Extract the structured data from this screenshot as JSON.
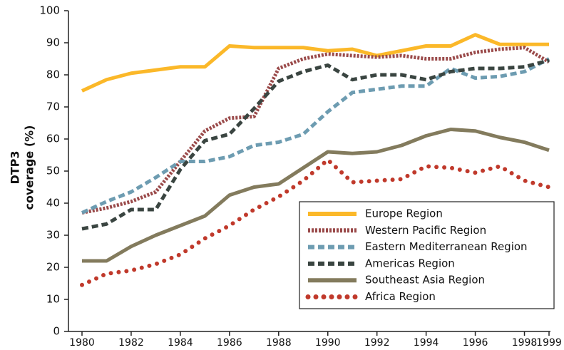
{
  "chart_data": {
    "type": "line",
    "y_label": [
      "DTP3",
      "coverage (%)"
    ],
    "x": [
      1980,
      1981,
      1982,
      1983,
      1984,
      1985,
      1986,
      1987,
      1988,
      1989,
      1990,
      1991,
      1992,
      1993,
      1994,
      1995,
      1996,
      1997,
      1998,
      1999
    ],
    "xlim": [
      1980,
      1999
    ],
    "xticks": [
      1980,
      1982,
      1984,
      1986,
      1988,
      1990,
      1992,
      1994,
      1996,
      1998,
      1999
    ],
    "ylim": [
      0,
      100
    ],
    "yticks": [
      0,
      10,
      20,
      30,
      40,
      50,
      60,
      70,
      80,
      90,
      100
    ],
    "legend": "lower right",
    "series": [
      {
        "name": "Europe Region",
        "color": "#fbb829",
        "style": "solid",
        "values": [
          75,
          78.5,
          80.5,
          81.5,
          82.5,
          82.5,
          89,
          88.5,
          88.5,
          88.5,
          87.5,
          88,
          86,
          87.5,
          89,
          89,
          92.5,
          89.5,
          89.5,
          89.5
        ]
      },
      {
        "name": "Western Pacific Region",
        "color": "#9a4a4a",
        "style": "dotted",
        "values": [
          37,
          38.5,
          40.5,
          43.5,
          53,
          62.5,
          66.5,
          67,
          82,
          85,
          86.5,
          86,
          85.5,
          86,
          85,
          85,
          87,
          88,
          88.5,
          84
        ]
      },
      {
        "name": "Eastern Mediterranean Region",
        "color": "#6d9cb1",
        "style": "dashed",
        "values": [
          37,
          40.5,
          43.5,
          48,
          53,
          53,
          54.5,
          58,
          59,
          61.5,
          68.5,
          74.5,
          75.5,
          76.5,
          76.5,
          82,
          79,
          79.5,
          81,
          85
        ]
      },
      {
        "name": "Americas Region",
        "color": "#3a4541",
        "style": "dashed",
        "values": [
          32,
          33.5,
          38,
          38,
          50.5,
          59.5,
          61.5,
          69.5,
          78,
          81,
          83,
          78.5,
          80,
          80,
          78.5,
          81,
          82,
          82,
          82.5,
          84.5
        ]
      },
      {
        "name": "Southeast Asia Region",
        "color": "#837b5d",
        "style": "solid",
        "values": [
          22,
          22,
          26.5,
          30,
          33,
          36,
          42.5,
          45,
          46,
          51,
          56,
          55.5,
          56,
          58,
          61,
          63,
          62.5,
          60.5,
          59,
          56.5
        ]
      },
      {
        "name": "Africa Region",
        "color": "#c0392b",
        "style": "round-dotted",
        "values": [
          14.5,
          18,
          19,
          21,
          24,
          29,
          33,
          38,
          42,
          47,
          53.5,
          46.5,
          47,
          47.5,
          51.5,
          51,
          49.5,
          51.5,
          47,
          45
        ]
      }
    ]
  }
}
